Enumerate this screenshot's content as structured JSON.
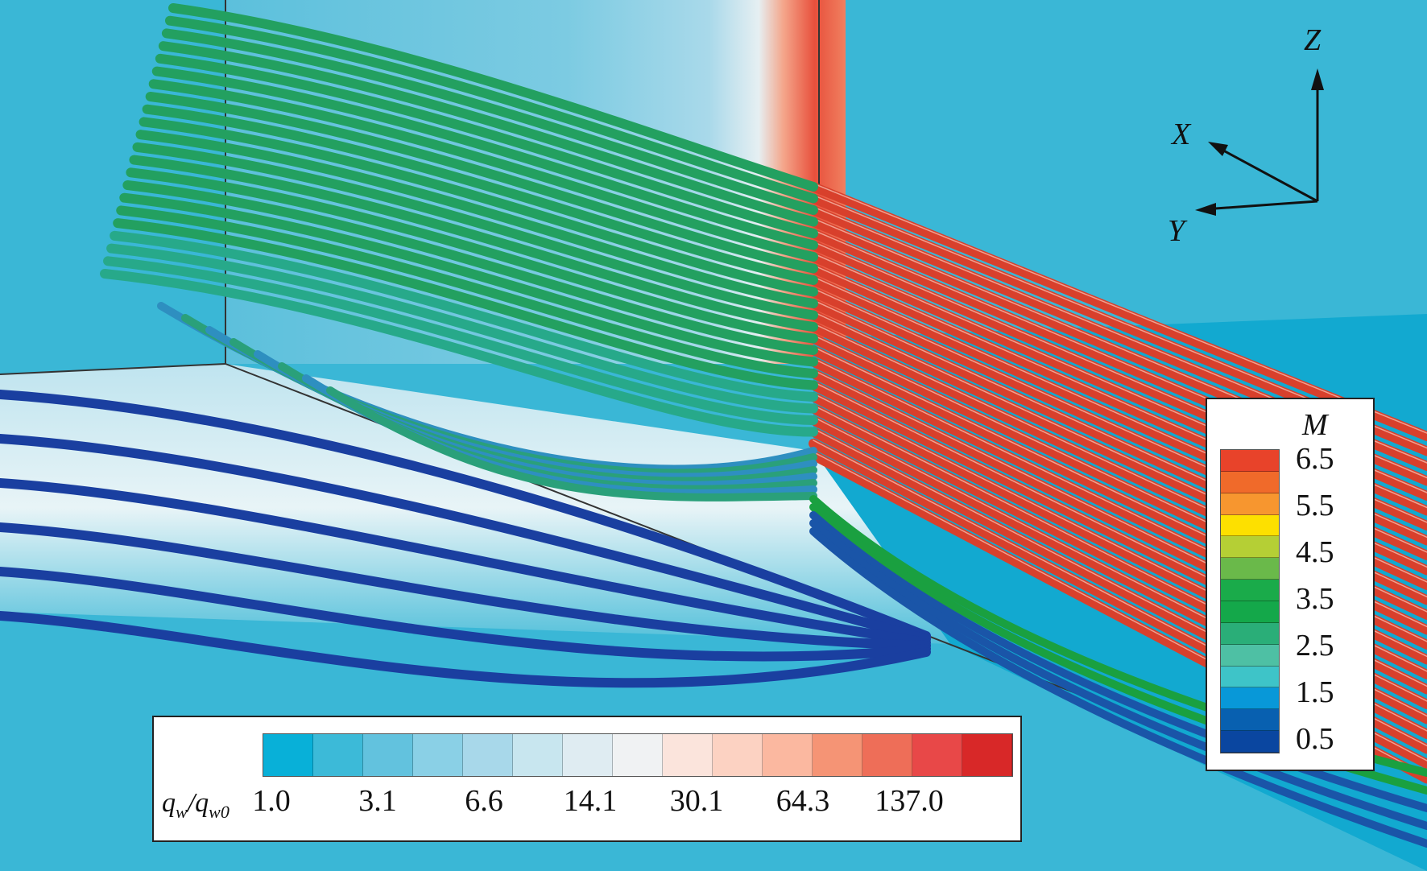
{
  "mach_legend": {
    "title": "M",
    "labels": [
      "6.5",
      "5.5",
      "4.5",
      "3.5",
      "2.5",
      "1.5",
      "0.5"
    ],
    "colors": [
      "#e8432a",
      "#f06a2a",
      "#f7962f",
      "#fde000",
      "#b5cf35",
      "#6ab94a",
      "#1aab4a",
      "#14a84a",
      "#2aae78",
      "#4ec0a4",
      "#3ec4c8",
      "#0898d8",
      "#0860b0",
      "#0a46a0"
    ]
  },
  "heatflux_legend": {
    "title_main": "q",
    "title_sub_num": "w",
    "title_den": "/q",
    "title_sub_den": "w0",
    "labels": [
      "1.0",
      "3.1",
      "6.6",
      "14.1",
      "30.1",
      "64.3",
      "137.0"
    ],
    "colors": [
      "#08b0d8",
      "#3cbad8",
      "#62c2de",
      "#8ad0e6",
      "#a8d8ea",
      "#c8e6ef",
      "#dfecf2",
      "#f0f2f3",
      "#fbe4dc",
      "#fcd2c2",
      "#fbb8a0",
      "#f59475",
      "#ee6e58",
      "#e84848",
      "#d82828"
    ]
  },
  "axes": {
    "x": "X",
    "y": "Y",
    "z": "Z"
  }
}
